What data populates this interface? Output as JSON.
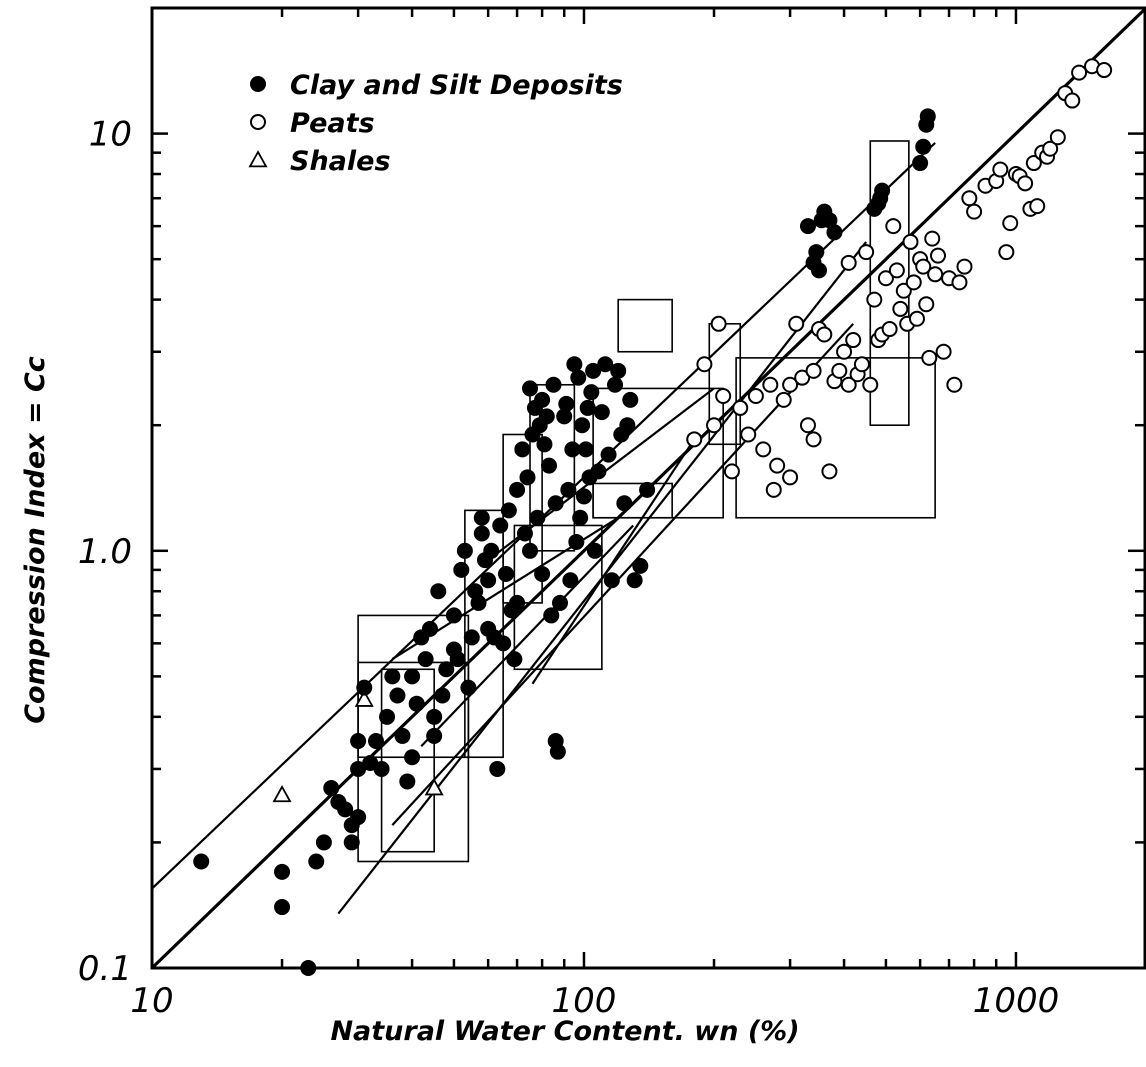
{
  "chart_data": {
    "type": "scatter",
    "title": "",
    "xlabel": "Natural Water Content. wn (%)",
    "ylabel": "Compression Index = Cc",
    "x_scale": "log",
    "y_scale": "log",
    "xlim": [
      10,
      2000
    ],
    "ylim": [
      0.1,
      20
    ],
    "x_ticks": [
      {
        "value": 10,
        "label": "10"
      },
      {
        "value": 100,
        "label": "100"
      },
      {
        "value": 1000,
        "label": "1000"
      }
    ],
    "y_ticks": [
      {
        "value": 0.1,
        "label": "0.1"
      },
      {
        "value": 1,
        "label": "1.0"
      },
      {
        "value": 10,
        "label": "10"
      }
    ],
    "grid": false,
    "legend_position": "top-left",
    "legend": [
      {
        "label": "Clay and Silt Deposits",
        "marker": "filled-circle"
      },
      {
        "label": "Peats",
        "marker": "open-circle"
      },
      {
        "label": "Shales",
        "marker": "open-triangle"
      }
    ],
    "series": [
      {
        "name": "Clay and Silt Deposits",
        "marker": "filled-circle",
        "points": [
          [
            13,
            0.18
          ],
          [
            20,
            0.17
          ],
          [
            20,
            0.14
          ],
          [
            23,
            0.1
          ],
          [
            24,
            0.18
          ],
          [
            25,
            0.2
          ],
          [
            26,
            0.27
          ],
          [
            27,
            0.25
          ],
          [
            28,
            0.24
          ],
          [
            29,
            0.2
          ],
          [
            29,
            0.22
          ],
          [
            30,
            0.23
          ],
          [
            30,
            0.3
          ],
          [
            30,
            0.35
          ],
          [
            31,
            0.47
          ],
          [
            32,
            0.31
          ],
          [
            33,
            0.35
          ],
          [
            34,
            0.3
          ],
          [
            35,
            0.4
          ],
          [
            36,
            0.5
          ],
          [
            37,
            0.45
          ],
          [
            38,
            0.36
          ],
          [
            39,
            0.28
          ],
          [
            40,
            0.32
          ],
          [
            40,
            0.5
          ],
          [
            41,
            0.43
          ],
          [
            42,
            0.62
          ],
          [
            43,
            0.55
          ],
          [
            44,
            0.65
          ],
          [
            45,
            0.4
          ],
          [
            45,
            0.36
          ],
          [
            46,
            0.8
          ],
          [
            47,
            0.45
          ],
          [
            48,
            0.52
          ],
          [
            50,
            0.58
          ],
          [
            50,
            0.7
          ],
          [
            51,
            0.55
          ],
          [
            52,
            0.9
          ],
          [
            53,
            1.0
          ],
          [
            54,
            0.47
          ],
          [
            55,
            0.62
          ],
          [
            56,
            0.8
          ],
          [
            57,
            0.75
          ],
          [
            58,
            1.1
          ],
          [
            58,
            1.2
          ],
          [
            59,
            0.95
          ],
          [
            60,
            0.65
          ],
          [
            60,
            0.85
          ],
          [
            61,
            1.0
          ],
          [
            62,
            0.62
          ],
          [
            63,
            0.3
          ],
          [
            64,
            1.15
          ],
          [
            65,
            0.6
          ],
          [
            66,
            0.88
          ],
          [
            67,
            1.25
          ],
          [
            68,
            0.72
          ],
          [
            69,
            0.55
          ],
          [
            70,
            0.75
          ],
          [
            70,
            1.4
          ],
          [
            72,
            1.75
          ],
          [
            73,
            1.1
          ],
          [
            74,
            1.5
          ],
          [
            75,
            1.0
          ],
          [
            75,
            2.45
          ],
          [
            76,
            1.9
          ],
          [
            77,
            2.2
          ],
          [
            78,
            1.2
          ],
          [
            79,
            2.0
          ],
          [
            80,
            0.88
          ],
          [
            80,
            2.3
          ],
          [
            81,
            1.8
          ],
          [
            82,
            2.1
          ],
          [
            83,
            1.6
          ],
          [
            84,
            0.7
          ],
          [
            85,
            2.5
          ],
          [
            86,
            1.3
          ],
          [
            86,
            0.35
          ],
          [
            87,
            0.33
          ],
          [
            88,
            0.75
          ],
          [
            90,
            2.1
          ],
          [
            91,
            2.25
          ],
          [
            92,
            1.4
          ],
          [
            93,
            0.85
          ],
          [
            94,
            1.75
          ],
          [
            95,
            2.8
          ],
          [
            96,
            1.05
          ],
          [
            97,
            2.6
          ],
          [
            98,
            1.2
          ],
          [
            99,
            2.0
          ],
          [
            100,
            1.35
          ],
          [
            101,
            1.75
          ],
          [
            102,
            2.2
          ],
          [
            103,
            1.5
          ],
          [
            104,
            2.4
          ],
          [
            105,
            2.7
          ],
          [
            106,
            1.0
          ],
          [
            108,
            1.55
          ],
          [
            110,
            2.15
          ],
          [
            112,
            2.8
          ],
          [
            114,
            1.7
          ],
          [
            116,
            0.85
          ],
          [
            118,
            2.5
          ],
          [
            120,
            2.7
          ],
          [
            122,
            1.9
          ],
          [
            124,
            1.3
          ],
          [
            126,
            2.0
          ],
          [
            128,
            2.3
          ],
          [
            131,
            0.85
          ],
          [
            135,
            0.92
          ],
          [
            140,
            1.4
          ],
          [
            330,
            6.0
          ],
          [
            340,
            4.9
          ],
          [
            345,
            5.2
          ],
          [
            350,
            4.7
          ],
          [
            355,
            6.2
          ],
          [
            360,
            6.5
          ],
          [
            370,
            6.2
          ],
          [
            380,
            5.8
          ],
          [
            470,
            6.6
          ],
          [
            480,
            6.8
          ],
          [
            485,
            7.0
          ],
          [
            490,
            7.3
          ],
          [
            600,
            8.5
          ],
          [
            610,
            9.3
          ],
          [
            620,
            10.5
          ],
          [
            625,
            11.0
          ]
        ]
      },
      {
        "name": "Peats",
        "marker": "open-circle",
        "points": [
          [
            180,
            1.85
          ],
          [
            190,
            2.8
          ],
          [
            200,
            2.0
          ],
          [
            205,
            3.5
          ],
          [
            210,
            2.35
          ],
          [
            220,
            1.55
          ],
          [
            230,
            2.2
          ],
          [
            240,
            1.9
          ],
          [
            250,
            2.35
          ],
          [
            260,
            1.75
          ],
          [
            270,
            2.5
          ],
          [
            275,
            1.4
          ],
          [
            280,
            1.6
          ],
          [
            290,
            2.3
          ],
          [
            300,
            1.5
          ],
          [
            300,
            2.5
          ],
          [
            310,
            3.5
          ],
          [
            320,
            2.6
          ],
          [
            330,
            2.0
          ],
          [
            340,
            2.7
          ],
          [
            340,
            1.85
          ],
          [
            350,
            3.4
          ],
          [
            360,
            3.3
          ],
          [
            370,
            1.55
          ],
          [
            380,
            2.55
          ],
          [
            390,
            2.7
          ],
          [
            400,
            3.0
          ],
          [
            410,
            2.5
          ],
          [
            410,
            4.9
          ],
          [
            420,
            3.2
          ],
          [
            430,
            2.65
          ],
          [
            440,
            2.8
          ],
          [
            450,
            5.2
          ],
          [
            460,
            2.5
          ],
          [
            470,
            4.0
          ],
          [
            480,
            3.2
          ],
          [
            490,
            3.3
          ],
          [
            500,
            4.5
          ],
          [
            510,
            3.4
          ],
          [
            520,
            6.0
          ],
          [
            530,
            4.7
          ],
          [
            540,
            3.8
          ],
          [
            550,
            4.2
          ],
          [
            560,
            3.5
          ],
          [
            570,
            5.5
          ],
          [
            580,
            4.4
          ],
          [
            590,
            3.6
          ],
          [
            600,
            5.0
          ],
          [
            610,
            4.8
          ],
          [
            620,
            3.9
          ],
          [
            630,
            2.9
          ],
          [
            640,
            5.6
          ],
          [
            650,
            4.6
          ],
          [
            660,
            5.1
          ],
          [
            680,
            3.0
          ],
          [
            700,
            4.5
          ],
          [
            720,
            2.5
          ],
          [
            740,
            4.4
          ],
          [
            760,
            4.8
          ],
          [
            780,
            7.0
          ],
          [
            800,
            6.5
          ],
          [
            850,
            7.5
          ],
          [
            900,
            7.7
          ],
          [
            920,
            8.2
          ],
          [
            950,
            5.2
          ],
          [
            970,
            6.1
          ],
          [
            1000,
            8.0
          ],
          [
            1020,
            7.9
          ],
          [
            1050,
            7.6
          ],
          [
            1080,
            6.6
          ],
          [
            1100,
            8.5
          ],
          [
            1120,
            6.7
          ],
          [
            1150,
            9.0
          ],
          [
            1180,
            8.8
          ],
          [
            1200,
            9.2
          ],
          [
            1250,
            9.8
          ],
          [
            1300,
            12.5
          ],
          [
            1350,
            12.0
          ],
          [
            1400,
            14.0
          ],
          [
            1500,
            14.5
          ],
          [
            1600,
            14.2
          ]
        ]
      },
      {
        "name": "Shales",
        "marker": "open-triangle",
        "points": [
          [
            20,
            0.26
          ],
          [
            31,
            0.44
          ],
          [
            45,
            0.27
          ]
        ]
      }
    ],
    "lines": [
      [
        [
          10,
          0.155
        ],
        [
          650,
          9.5
        ]
      ],
      [
        [
          10,
          0.1
        ],
        [
          2000,
          20
        ]
      ],
      [
        [
          27,
          0.135
        ],
        [
          450,
          5.5
        ]
      ],
      [
        [
          36,
          0.22
        ],
        [
          420,
          3.5
        ]
      ],
      [
        [
          42,
          0.34
        ],
        [
          130,
          1.15
        ]
      ],
      [
        [
          76,
          0.48
        ],
        [
          180,
          1.85
        ]
      ],
      [
        [
          36,
          0.55
        ],
        [
          120,
          1.2
        ]
      ],
      [
        [
          60,
          0.95
        ],
        [
          200,
          2.45
        ]
      ]
    ],
    "boxes": [
      {
        "x": [
          30,
          54
        ],
        "y": [
          0.18,
          0.7
        ]
      },
      {
        "x": [
          34,
          45
        ],
        "y": [
          0.19,
          0.52
        ]
      },
      {
        "x": [
          30,
          54
        ],
        "y": [
          0.32,
          0.54
        ]
      },
      {
        "x": [
          53,
          65
        ],
        "y": [
          0.32,
          1.25
        ]
      },
      {
        "x": [
          65,
          80
        ],
        "y": [
          0.75,
          1.9
        ]
      },
      {
        "x": [
          69,
          110
        ],
        "y": [
          0.52,
          1.15
        ]
      },
      {
        "x": [
          75,
          95
        ],
        "y": [
          1.0,
          2.5
        ]
      },
      {
        "x": [
          105,
          160
        ],
        "y": [
          1.2,
          1.45
        ]
      },
      {
        "x": [
          105,
          210
        ],
        "y": [
          1.2,
          2.45
        ]
      },
      {
        "x": [
          120,
          160
        ],
        "y": [
          3.0,
          4.0
        ]
      },
      {
        "x": [
          195,
          230
        ],
        "y": [
          1.8,
          3.5
        ]
      },
      {
        "x": [
          225,
          650
        ],
        "y": [
          1.2,
          2.9
        ]
      },
      {
        "x": [
          460,
          565
        ],
        "y": [
          2.0,
          9.6
        ]
      }
    ]
  }
}
